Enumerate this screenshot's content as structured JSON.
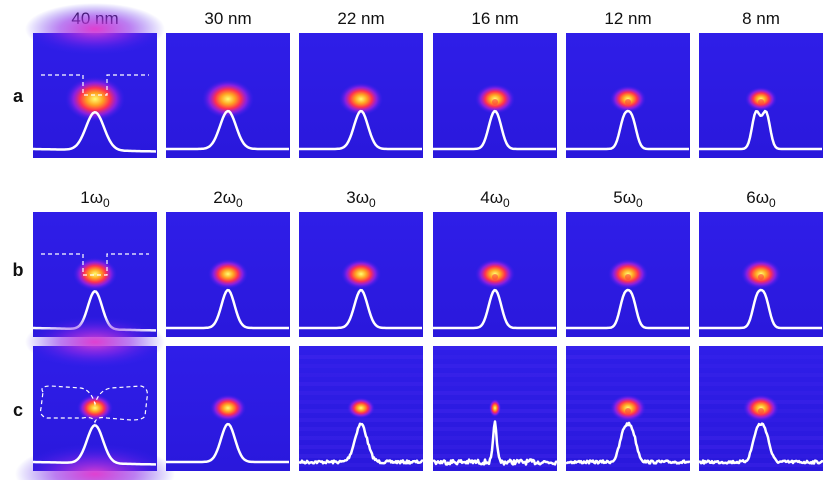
{
  "rows": [
    {
      "label": "a",
      "headers": [
        "40 nm",
        "30 nm",
        "22 nm",
        "16 nm",
        "12 nm",
        "8 nm"
      ]
    },
    {
      "label": "b",
      "headers": [
        {
          "text": "1ω",
          "sub": "0"
        },
        {
          "text": "2ω",
          "sub": "0"
        },
        {
          "text": "3ω",
          "sub": "0"
        },
        {
          "text": "4ω",
          "sub": "0"
        },
        {
          "text": "5ω",
          "sub": "0"
        },
        {
          "text": "6ω",
          "sub": "0"
        }
      ]
    },
    {
      "label": "c"
    }
  ]
}
